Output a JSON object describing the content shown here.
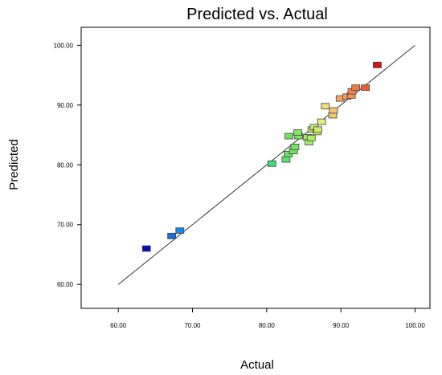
{
  "chart_data": {
    "type": "scatter",
    "title": "Predicted vs. Actual",
    "xlabel": "Actual",
    "ylabel": "Predicted",
    "xlim": [
      55,
      102
    ],
    "ylim": [
      56,
      103
    ],
    "xticks": [
      "60.00",
      "70.00",
      "80.00",
      "90.00",
      "100.00"
    ],
    "yticks": [
      "60.00",
      "70.00",
      "80.00",
      "90.00",
      "100.00"
    ],
    "reference_line": {
      "from": [
        60,
        60
      ],
      "to": [
        100,
        100
      ]
    },
    "grid": false,
    "points": [
      {
        "x": 63.8,
        "y": 66.0,
        "color": "#0010c8"
      },
      {
        "x": 67.2,
        "y": 68.1,
        "color": "#1a6fe0"
      },
      {
        "x": 68.3,
        "y": 69.0,
        "color": "#1a8ae8"
      },
      {
        "x": 80.7,
        "y": 80.2,
        "color": "#39e07a"
      },
      {
        "x": 82.6,
        "y": 80.9,
        "color": "#5ce26a"
      },
      {
        "x": 82.9,
        "y": 81.8,
        "color": "#62e265"
      },
      {
        "x": 83.6,
        "y": 82.3,
        "color": "#6ee462"
      },
      {
        "x": 83.8,
        "y": 83.0,
        "color": "#74e560"
      },
      {
        "x": 83.0,
        "y": 84.8,
        "color": "#70e462"
      },
      {
        "x": 84.3,
        "y": 84.8,
        "color": "#80e660"
      },
      {
        "x": 84.2,
        "y": 85.4,
        "color": "#80e660"
      },
      {
        "x": 85.5,
        "y": 84.6,
        "color": "#a6ea64"
      },
      {
        "x": 85.7,
        "y": 83.8,
        "color": "#a0ea64"
      },
      {
        "x": 86.0,
        "y": 84.5,
        "color": "#b4ec68"
      },
      {
        "x": 86.1,
        "y": 85.9,
        "color": "#bcec6a"
      },
      {
        "x": 86.4,
        "y": 86.3,
        "color": "#c6ee6c"
      },
      {
        "x": 86.8,
        "y": 85.5,
        "color": "#ccee70"
      },
      {
        "x": 86.9,
        "y": 85.9,
        "color": "#d2ee70"
      },
      {
        "x": 87.4,
        "y": 87.2,
        "color": "#e4ee78"
      },
      {
        "x": 87.9,
        "y": 89.8,
        "color": "#f0de7c"
      },
      {
        "x": 88.9,
        "y": 88.3,
        "color": "#f0c870"
      },
      {
        "x": 89.0,
        "y": 89.1,
        "color": "#f2c270"
      },
      {
        "x": 89.9,
        "y": 91.1,
        "color": "#f4a860"
      },
      {
        "x": 90.8,
        "y": 91.4,
        "color": "#f49a58"
      },
      {
        "x": 91.4,
        "y": 91.6,
        "color": "#f49050"
      },
      {
        "x": 91.5,
        "y": 92.3,
        "color": "#f28848"
      },
      {
        "x": 92.0,
        "y": 92.9,
        "color": "#f07a40"
      },
      {
        "x": 93.3,
        "y": 92.9,
        "color": "#ec5c30"
      },
      {
        "x": 94.9,
        "y": 96.7,
        "color": "#e01010"
      }
    ]
  }
}
